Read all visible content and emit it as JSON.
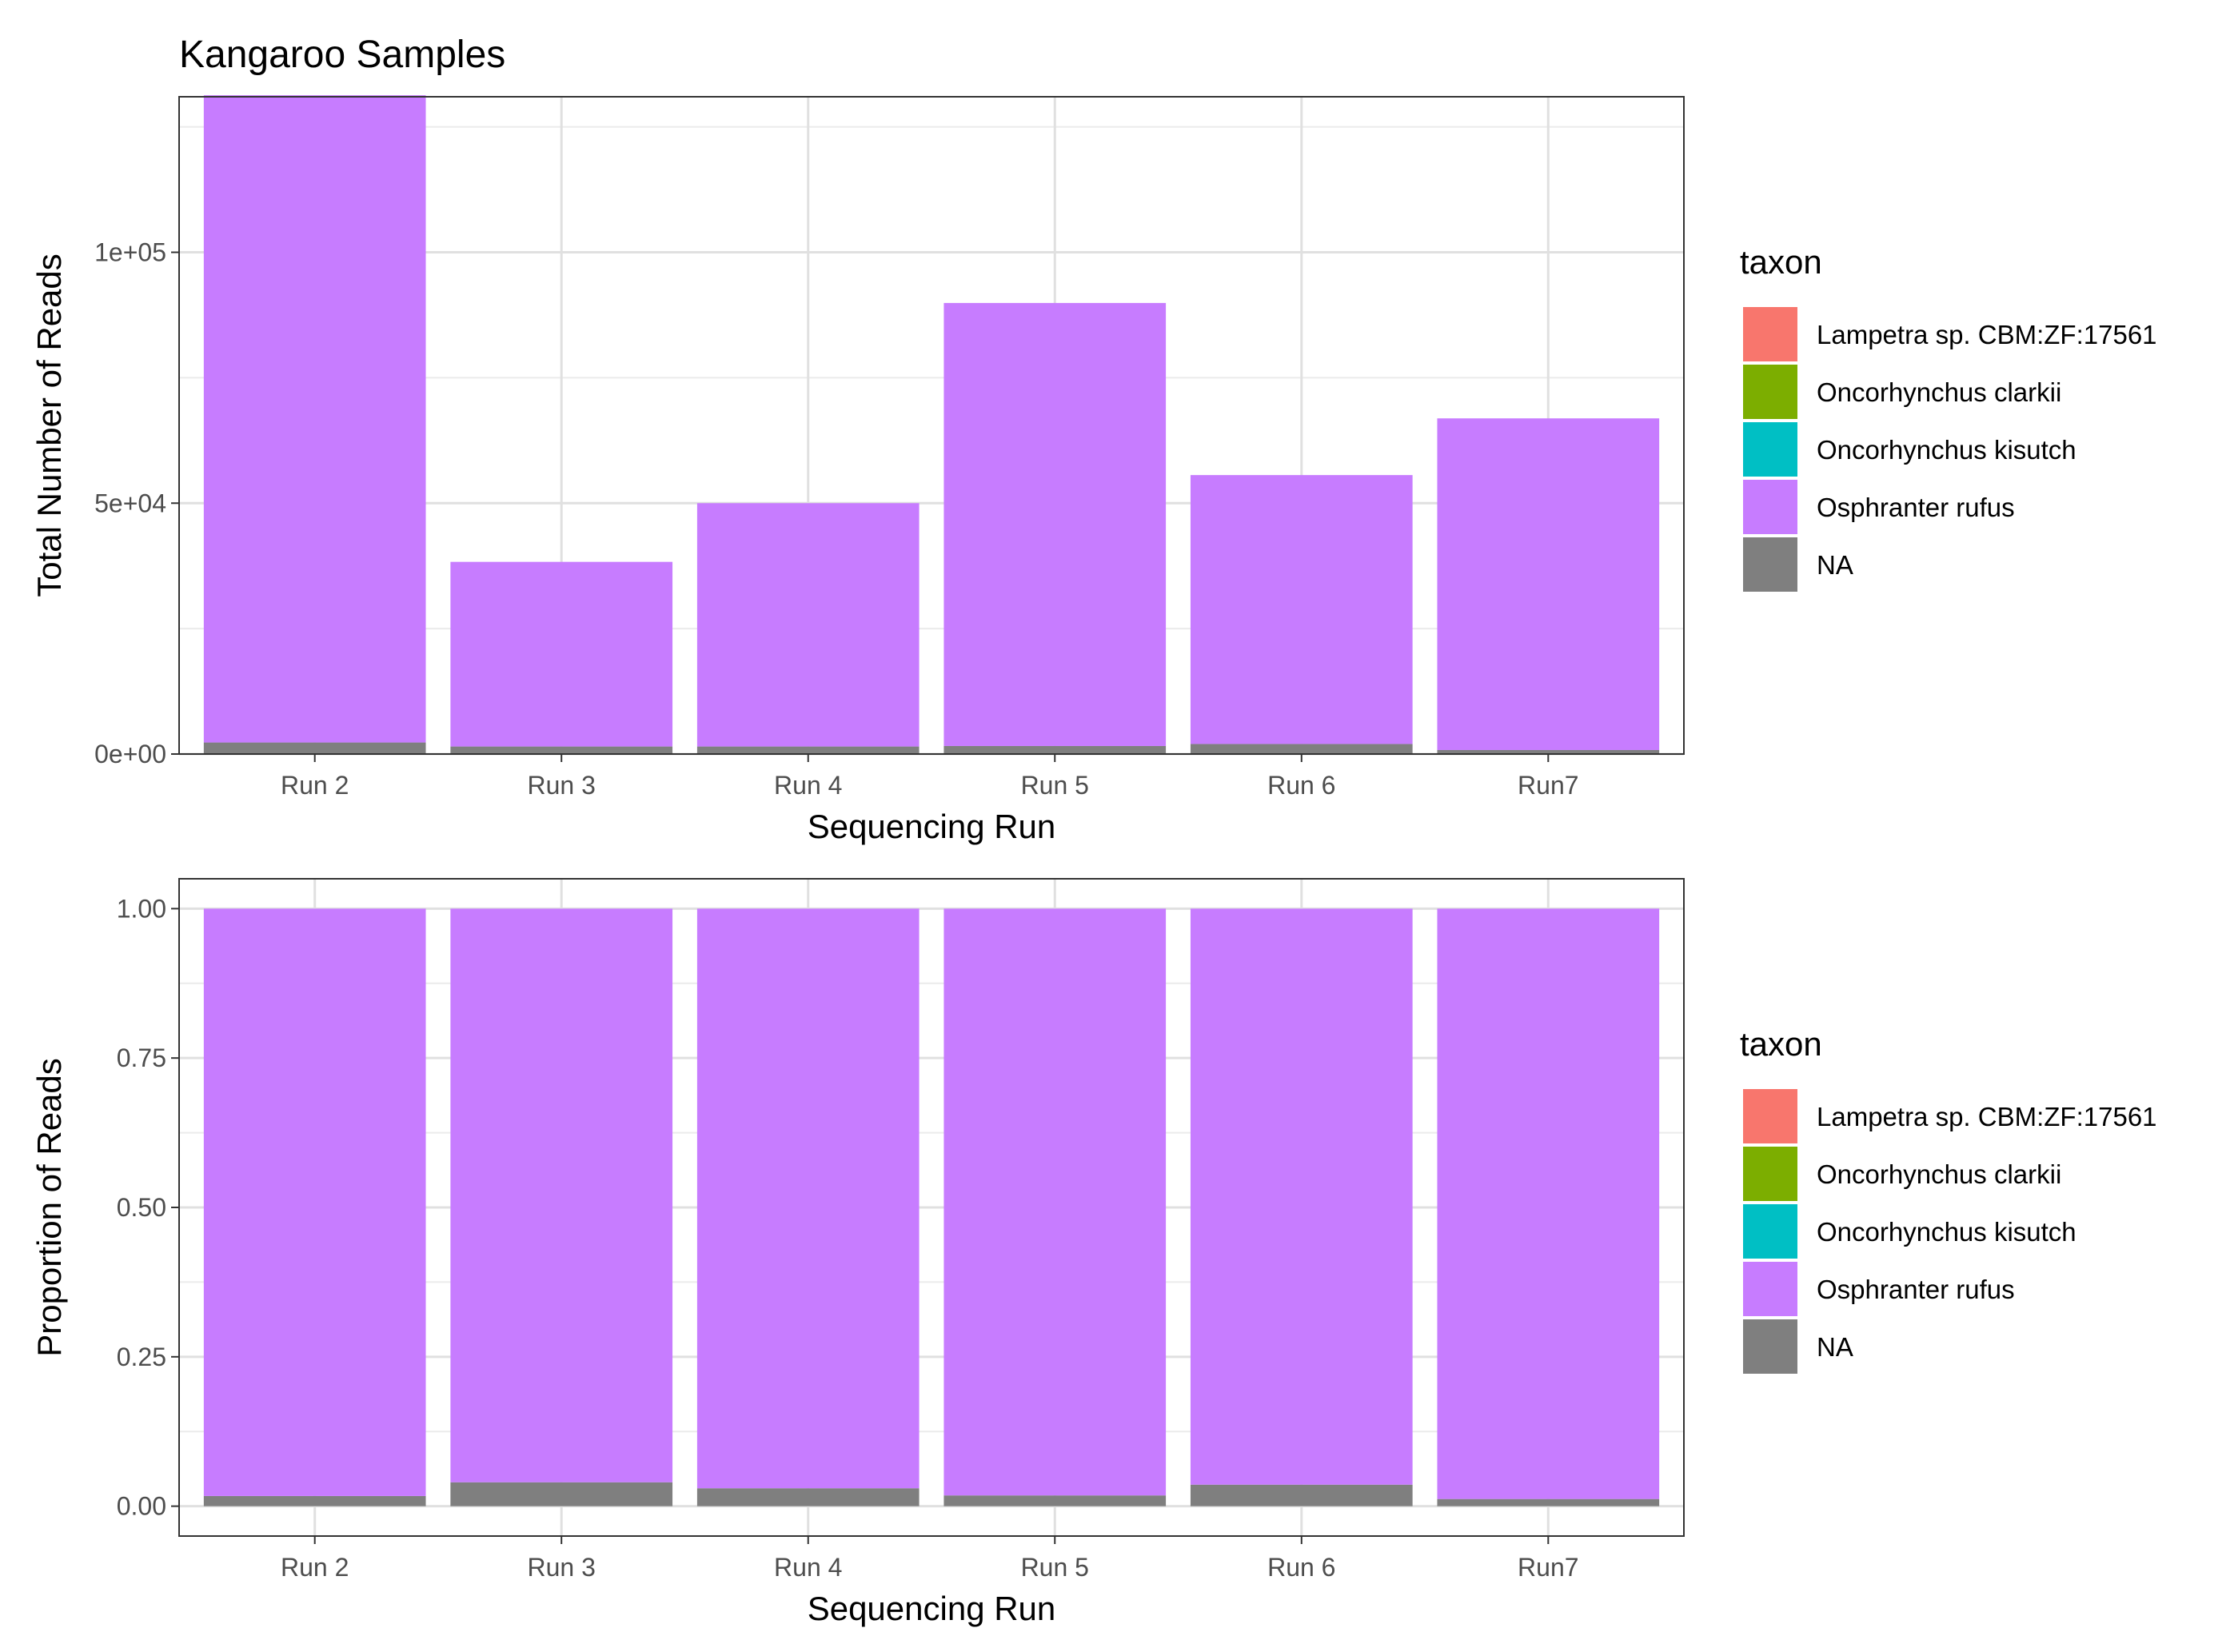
{
  "figure_title": "Kangaroo Samples",
  "colors": {
    "Lampetra sp. CBM:ZF:17561": "#F8766D",
    "Oncorhynchus clarkii": "#7CAE00",
    "Oncorhynchus kisutch": "#00BFC4",
    "Osphranter rufus": "#C77CFF",
    "NA": "#7F7F7F"
  },
  "chart_data": [
    {
      "type": "bar",
      "stacked": true,
      "title": "Kangaroo Samples",
      "xlabel": "Sequencing Run",
      "ylabel": "Total Number of Reads",
      "categories": [
        "Run 2",
        "Run 3",
        "Run 4",
        "Run 5",
        "Run 6",
        "Run7"
      ],
      "ylim": [
        0,
        131000
      ],
      "yticks": [
        0,
        50000,
        100000
      ],
      "ytick_labels": [
        "0e+00",
        "5e+04",
        "1e+05"
      ],
      "legend_title": "taxon",
      "legend_position": "right",
      "grid": true,
      "series": [
        {
          "name": "NA",
          "values": [
            2300,
            1500,
            1500,
            1600,
            2000,
            800
          ]
        },
        {
          "name": "Lampetra sp. CBM:ZF:17561",
          "values": [
            0,
            0,
            0,
            0,
            0,
            0
          ]
        },
        {
          "name": "Oncorhynchus clarkii",
          "values": [
            0,
            0,
            0,
            0,
            0,
            0
          ]
        },
        {
          "name": "Oncorhynchus kisutch",
          "values": [
            0,
            0,
            0,
            0,
            0,
            0
          ]
        },
        {
          "name": "Osphranter rufus",
          "values": [
            129000,
            36800,
            48500,
            88300,
            53600,
            66100
          ]
        }
      ],
      "legend": [
        "Lampetra sp. CBM:ZF:17561",
        "Oncorhynchus clarkii",
        "Oncorhynchus kisutch",
        "Osphranter rufus",
        "NA"
      ]
    },
    {
      "type": "bar",
      "stacked": true,
      "title": "",
      "xlabel": "Sequencing Run",
      "ylabel": "Proportion of Reads",
      "categories": [
        "Run 2",
        "Run 3",
        "Run 4",
        "Run 5",
        "Run 6",
        "Run7"
      ],
      "ylim": [
        -0.05,
        1.05
      ],
      "yticks": [
        0,
        0.25,
        0.5,
        0.75,
        1
      ],
      "ytick_labels": [
        "0.00",
        "0.25",
        "0.50",
        "0.75",
        "1.00"
      ],
      "legend_title": "taxon",
      "legend_position": "right",
      "grid": true,
      "series": [
        {
          "name": "NA",
          "values": [
            0.017,
            0.04,
            0.03,
            0.018,
            0.036,
            0.012
          ]
        },
        {
          "name": "Lampetra sp. CBM:ZF:17561",
          "values": [
            0,
            0,
            0,
            0,
            0,
            0
          ]
        },
        {
          "name": "Oncorhynchus clarkii",
          "values": [
            0,
            0,
            0,
            0,
            0,
            0
          ]
        },
        {
          "name": "Oncorhynchus kisutch",
          "values": [
            0,
            0,
            0,
            0,
            0,
            0
          ]
        },
        {
          "name": "Osphranter rufus",
          "values": [
            0.983,
            0.96,
            0.97,
            0.982,
            0.964,
            0.988
          ]
        }
      ],
      "legend": [
        "Lampetra sp. CBM:ZF:17561",
        "Oncorhynchus clarkii",
        "Oncorhynchus kisutch",
        "Osphranter rufus",
        "NA"
      ]
    }
  ]
}
